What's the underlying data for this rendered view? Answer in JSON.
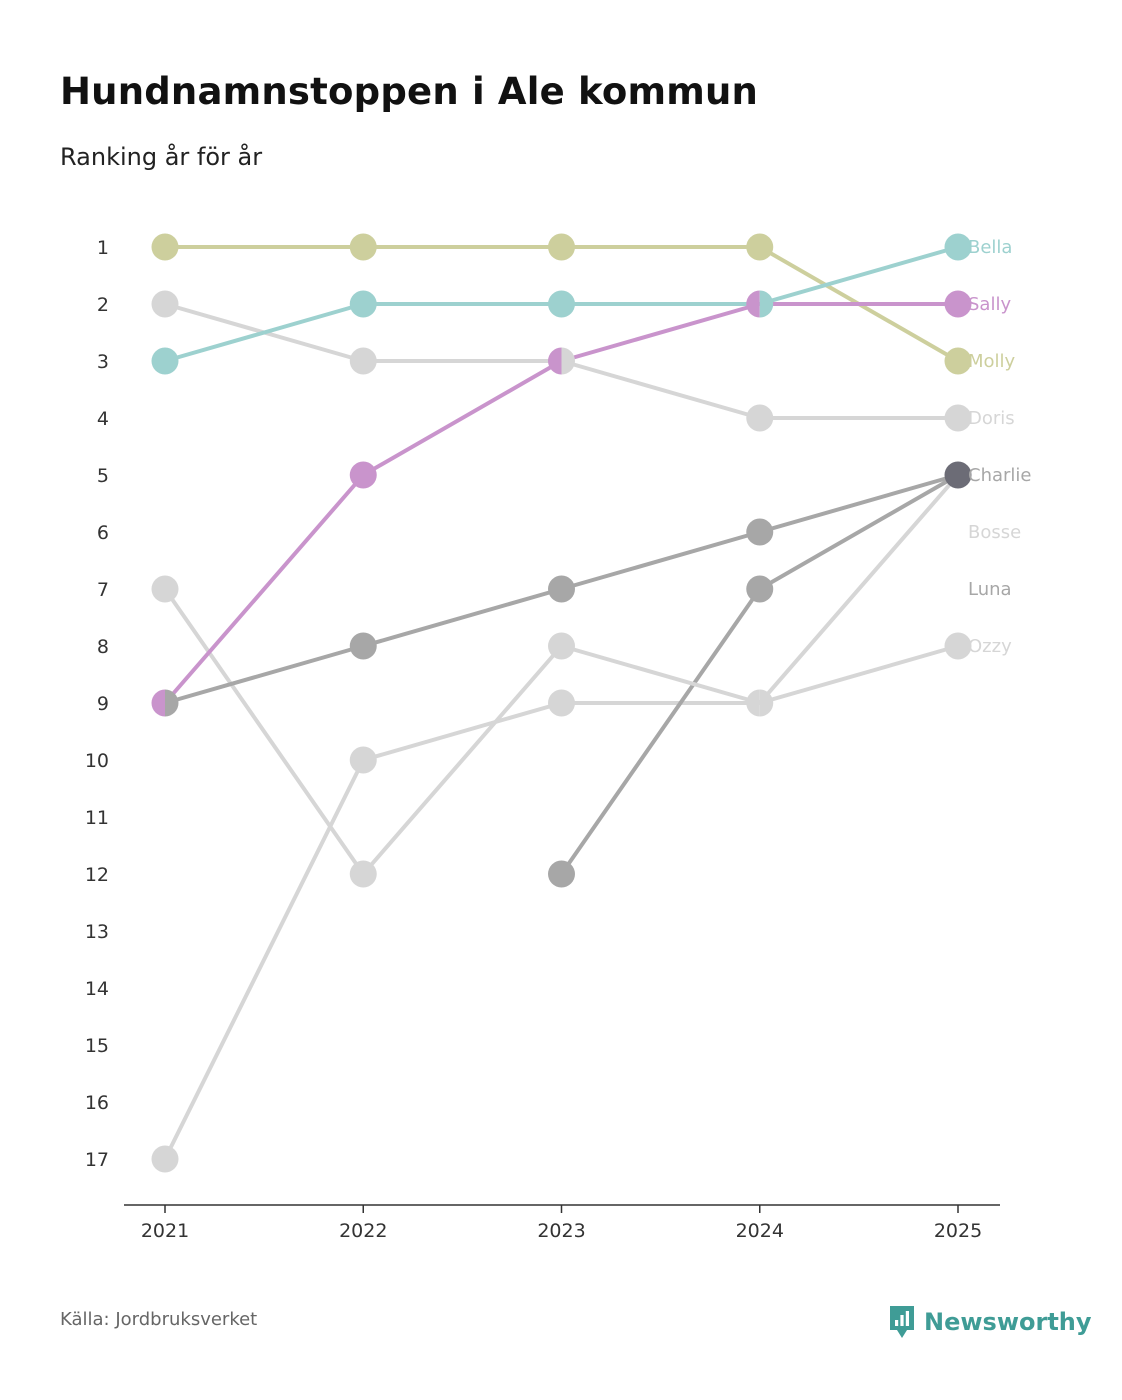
{
  "header": {
    "title": "Hundnamnstoppen i Ale kommun",
    "subtitle": "Ranking år för år"
  },
  "footer": {
    "source": "Källa: Jordbruksverket",
    "brand": "Newsworthy",
    "brand_color": "#3f9c96",
    "brand_icon": "bar-chart-speech-bubble-icon"
  },
  "chart_data": {
    "type": "line",
    "title": "Hundnamnstoppen i Ale kommun",
    "subtitle": "Ranking år för år",
    "xlabel": "",
    "ylabel": "Ranking",
    "x": [
      "2021",
      "2022",
      "2023",
      "2024",
      "2025"
    ],
    "y_ticks": [
      "1",
      "2",
      "3",
      "4",
      "5",
      "6",
      "7",
      "8",
      "9",
      "10",
      "11",
      "12",
      "13",
      "14",
      "15",
      "16",
      "17"
    ],
    "ylim": [
      1,
      17
    ],
    "y_inverted": true,
    "grid": false,
    "legend": "end-labels-right",
    "series": [
      {
        "name": "Ozzy",
        "color": "#d6d6d6",
        "values": [
          17,
          10,
          9,
          9,
          8
        ]
      },
      {
        "name": "Luna",
        "color": "#a7a7a7",
        "values": [
          null,
          null,
          12,
          7,
          5
        ]
      },
      {
        "name": "Bosse",
        "color": "#d6d6d6",
        "values": [
          7,
          12,
          8,
          9,
          5
        ]
      },
      {
        "name": "Charlie",
        "color": "#a7a7a7",
        "values": [
          9,
          8,
          7,
          6,
          5
        ]
      },
      {
        "name": "Doris",
        "color": "#d6d6d6",
        "values": [
          2,
          3,
          3,
          4,
          4
        ]
      },
      {
        "name": "Molly",
        "color": "#cdcf9d",
        "values": [
          1,
          1,
          1,
          1,
          3
        ]
      },
      {
        "name": "Bella",
        "color": "#9dd1cf",
        "values": [
          3,
          2,
          2,
          2,
          1
        ]
      },
      {
        "name": "Sally",
        "color": "#c994cc",
        "values": [
          9,
          5,
          3,
          2,
          2
        ]
      }
    ],
    "end_labels": [
      {
        "name": "Bella",
        "rank": 1,
        "color": "#9dd1cf"
      },
      {
        "name": "Sally",
        "rank": 2,
        "color": "#c994cc"
      },
      {
        "name": "Molly",
        "rank": 3,
        "color": "#cdcf9d"
      },
      {
        "name": "Doris",
        "rank": 4,
        "color": "#d6d6d6"
      },
      {
        "name": "Charlie",
        "rank": 5,
        "color": "#a7a7a7"
      },
      {
        "name": "Bosse",
        "rank": 6,
        "color": "#d6d6d6"
      },
      {
        "name": "Luna",
        "rank": 7,
        "color": "#a7a7a7"
      },
      {
        "name": "Ozzy",
        "rank": 8,
        "color": "#d6d6d6"
      }
    ],
    "shared_point_color": "#6c6c76"
  }
}
